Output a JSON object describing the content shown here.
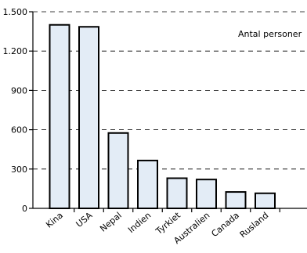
{
  "chart_data": {
    "type": "bar",
    "unit_label": "Antal personer",
    "categories": [
      "Kina",
      "USA",
      "Nepal",
      "Indien",
      "Tyrkiet",
      "Australien",
      "Canada",
      "Rusland"
    ],
    "values": [
      1400,
      1385,
      575,
      365,
      230,
      220,
      125,
      115
    ],
    "y_ticks": [
      0,
      300,
      600,
      900,
      1200,
      1500
    ],
    "y_tick_labels": [
      "0",
      "300",
      "600",
      "900",
      "1.200",
      "1.500"
    ],
    "ylim": [
      0,
      1500
    ],
    "grid": "dashed horizontal",
    "colors": {
      "bar_fill": "#e3ecf6",
      "bar_stroke": "#000000",
      "grid": "#000000"
    }
  }
}
